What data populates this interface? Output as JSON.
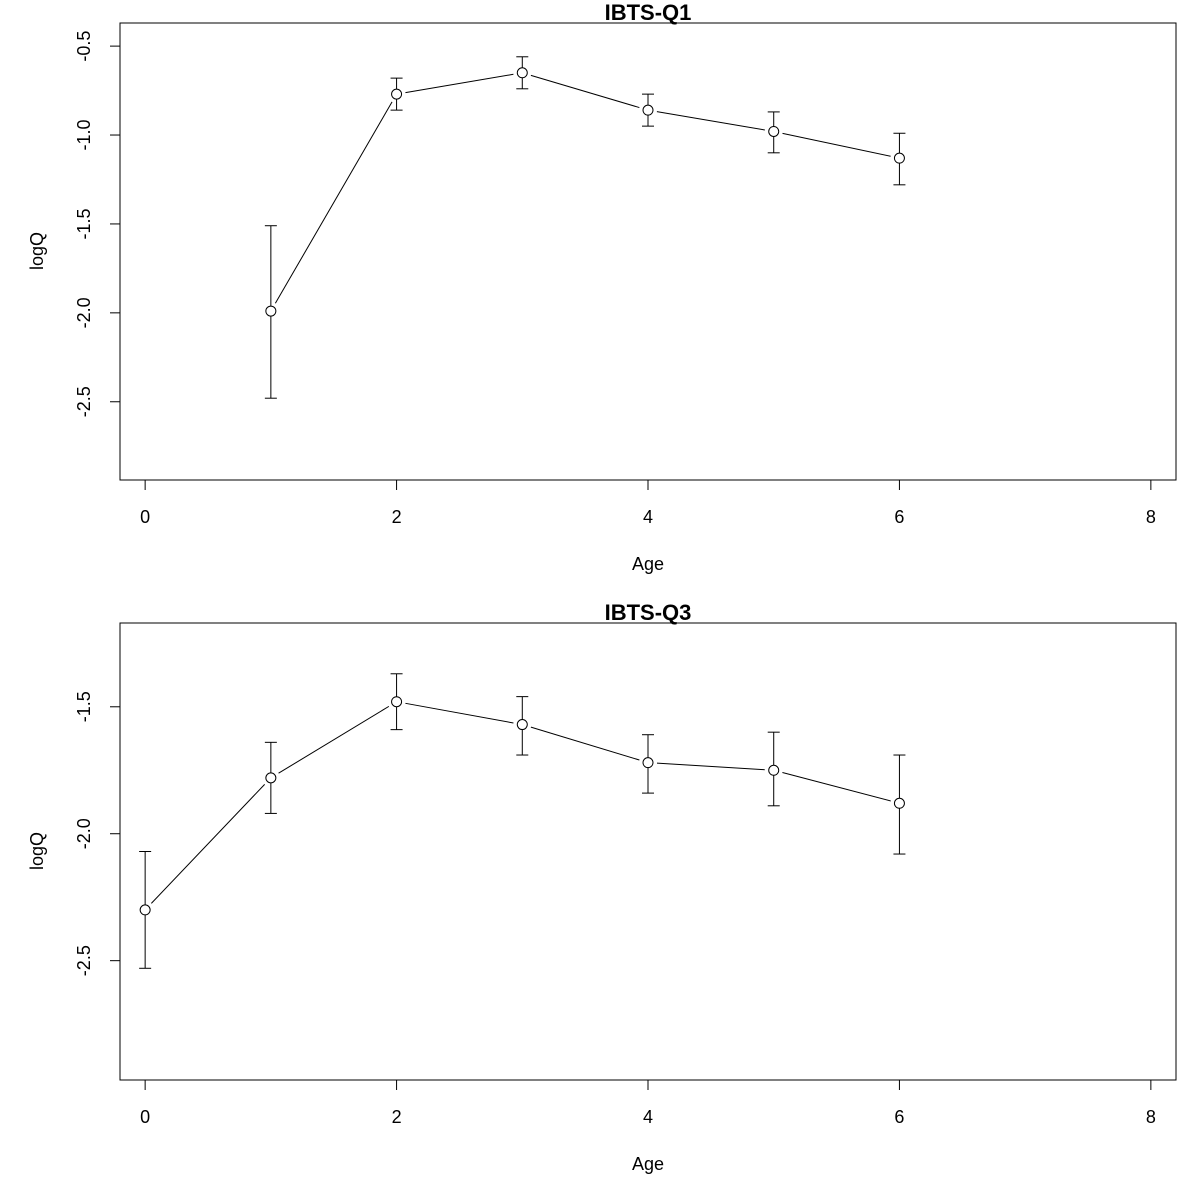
{
  "chart_data": [
    {
      "type": "line",
      "title": "IBTS-Q1",
      "xlabel": "Age",
      "ylabel": "logQ",
      "xlim": [
        -0.2,
        8.2
      ],
      "ylim": [
        -2.94,
        -0.37
      ],
      "xticks": [
        0,
        2,
        4,
        6,
        8
      ],
      "xtick_labels": [
        "0",
        "2",
        "4",
        "6",
        "8"
      ],
      "yticks": [
        -2.5,
        -2.0,
        -1.5,
        -1.0,
        -0.5
      ],
      "ytick_labels": [
        "-2.5",
        "-2.0",
        "-1.5",
        "-1.0",
        "-0.5"
      ],
      "grid": false,
      "points": [
        {
          "x": 1,
          "y": -1.99,
          "lower": -2.48,
          "upper": -1.51
        },
        {
          "x": 2,
          "y": -0.77,
          "lower": -0.86,
          "upper": -0.68
        },
        {
          "x": 3,
          "y": -0.65,
          "lower": -0.74,
          "upper": -0.56
        },
        {
          "x": 4,
          "y": -0.86,
          "lower": -0.95,
          "upper": -0.77
        },
        {
          "x": 5,
          "y": -0.98,
          "lower": -1.1,
          "upper": -0.87
        },
        {
          "x": 6,
          "y": -1.13,
          "lower": -1.28,
          "upper": -0.99
        }
      ]
    },
    {
      "type": "line",
      "title": "IBTS-Q3",
      "xlabel": "Age",
      "ylabel": "logQ",
      "xlim": [
        -0.2,
        8.2
      ],
      "ylim": [
        -2.97,
        -1.17
      ],
      "xticks": [
        0,
        2,
        4,
        6,
        8
      ],
      "xtick_labels": [
        "0",
        "2",
        "4",
        "6",
        "8"
      ],
      "yticks": [
        -2.5,
        -2.0,
        -1.5
      ],
      "ytick_labels": [
        "-2.5",
        "-2.0",
        "-1.5"
      ],
      "grid": false,
      "points": [
        {
          "x": 0,
          "y": -2.3,
          "lower": -2.53,
          "upper": -2.07
        },
        {
          "x": 1,
          "y": -1.78,
          "lower": -1.92,
          "upper": -1.64
        },
        {
          "x": 2,
          "y": -1.48,
          "lower": -1.59,
          "upper": -1.37
        },
        {
          "x": 3,
          "y": -1.57,
          "lower": -1.69,
          "upper": -1.46
        },
        {
          "x": 4,
          "y": -1.72,
          "lower": -1.84,
          "upper": -1.61
        },
        {
          "x": 5,
          "y": -1.75,
          "lower": -1.89,
          "upper": -1.6
        },
        {
          "x": 6,
          "y": -1.88,
          "lower": -2.08,
          "upper": -1.69
        }
      ]
    }
  ]
}
